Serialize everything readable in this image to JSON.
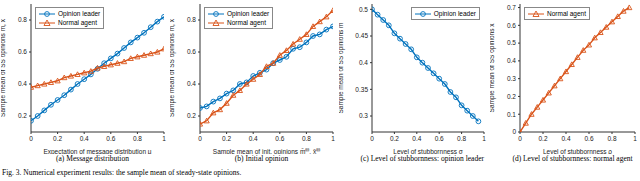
{
  "caption": "Fig. 3. Numerical experiment results: the sample mean of steady-state opinions.",
  "chart_data": [
    {
      "type": "scatter",
      "title": "(a) Message distribution",
      "x_label": "Expectation of message distribution μ",
      "y_label": "Sample mean of SS opinions m̄, x̄",
      "xlim": [
        0,
        1
      ],
      "ylim": [
        0.1,
        0.9
      ],
      "xticks": [
        0,
        0.2,
        0.4,
        0.6,
        0.8,
        1
      ],
      "yticks": [
        0.2,
        0.4,
        0.6,
        0.8
      ],
      "grid": false,
      "legend": "upper left",
      "series": [
        {
          "name": "Opinion leader",
          "color": "#0072bd",
          "marker": "circle",
          "line_style": "solid",
          "x": [
            0,
            0.05,
            0.1,
            0.15,
            0.2,
            0.25,
            0.3,
            0.35,
            0.4,
            0.45,
            0.5,
            0.55,
            0.6,
            0.65,
            0.7,
            0.75,
            0.8,
            0.85,
            0.9,
            0.95,
            1
          ],
          "values": [
            0.17,
            0.2,
            0.235,
            0.27,
            0.3,
            0.33,
            0.365,
            0.4,
            0.43,
            0.46,
            0.495,
            0.53,
            0.56,
            0.59,
            0.625,
            0.66,
            0.69,
            0.72,
            0.755,
            0.79,
            0.82
          ]
        },
        {
          "name": "Normal agent",
          "color": "#d95319",
          "marker": "triangle",
          "line_style": "solid",
          "x": [
            0,
            0.05,
            0.1,
            0.15,
            0.2,
            0.25,
            0.3,
            0.35,
            0.4,
            0.45,
            0.5,
            0.55,
            0.6,
            0.65,
            0.7,
            0.75,
            0.8,
            0.85,
            0.9,
            0.95,
            1
          ],
          "values": [
            0.38,
            0.39,
            0.4,
            0.41,
            0.42,
            0.44,
            0.45,
            0.46,
            0.47,
            0.48,
            0.5,
            0.51,
            0.52,
            0.53,
            0.54,
            0.56,
            0.57,
            0.58,
            0.59,
            0.6,
            0.62
          ]
        }
      ]
    },
    {
      "type": "scatter",
      "title": "(b) Initial opinion",
      "x_label": "Sample mean of init. opinions m̄⁽⁰⁾, x̄⁽⁰⁾",
      "y_label": "Sample mean of SS opinions m̄, x̄",
      "xlim": [
        0,
        1
      ],
      "ylim": [
        0.1,
        0.9
      ],
      "xticks": [
        0,
        0.2,
        0.4,
        0.6,
        0.8,
        1
      ],
      "yticks": [
        0.2,
        0.4,
        0.6,
        0.8
      ],
      "grid": false,
      "legend": "upper left",
      "series": [
        {
          "name": "Opinion leader",
          "color": "#0072bd",
          "marker": "circle",
          "line_style": "solid",
          "x": [
            0,
            0.05,
            0.1,
            0.15,
            0.2,
            0.25,
            0.3,
            0.35,
            0.4,
            0.45,
            0.5,
            0.55,
            0.6,
            0.65,
            0.7,
            0.75,
            0.8,
            0.85,
            0.9,
            0.95,
            1
          ],
          "values": [
            0.25,
            0.26,
            0.29,
            0.31,
            0.34,
            0.36,
            0.4,
            0.41,
            0.45,
            0.47,
            0.49,
            0.53,
            0.55,
            0.57,
            0.62,
            0.63,
            0.66,
            0.7,
            0.71,
            0.74,
            0.76
          ]
        },
        {
          "name": "Normal agent",
          "color": "#d95319",
          "marker": "triangle",
          "line_style": "solid",
          "x": [
            0,
            0.05,
            0.1,
            0.15,
            0.2,
            0.25,
            0.3,
            0.35,
            0.4,
            0.45,
            0.5,
            0.55,
            0.6,
            0.65,
            0.7,
            0.75,
            0.8,
            0.85,
            0.9,
            0.95,
            1
          ],
          "values": [
            0.15,
            0.17,
            0.22,
            0.24,
            0.28,
            0.33,
            0.36,
            0.4,
            0.43,
            0.46,
            0.51,
            0.53,
            0.58,
            0.61,
            0.65,
            0.68,
            0.71,
            0.76,
            0.79,
            0.82,
            0.86
          ]
        }
      ]
    },
    {
      "type": "line",
      "title": "(c) Level of stubbornness: opinion leader",
      "x_label": "Level of stubbornness σ",
      "y_label": "Sample mean of SS opinions m̄",
      "xlim": [
        0,
        1
      ],
      "ylim": [
        0.27,
        0.51
      ],
      "xticks": [
        0,
        0.2,
        0.4,
        0.6,
        0.8,
        1
      ],
      "yticks": [
        0.3,
        0.35,
        0.4,
        0.45,
        0.5
      ],
      "grid": false,
      "legend": "upper right",
      "series": [
        {
          "name": "Opinion leader",
          "color": "#0072bd",
          "marker": "circle",
          "line_style": "solid",
          "x": [
            0,
            0.05,
            0.1,
            0.15,
            0.2,
            0.25,
            0.3,
            0.35,
            0.4,
            0.45,
            0.5,
            0.55,
            0.6,
            0.65,
            0.7,
            0.75,
            0.8,
            0.85,
            0.9,
            0.95
          ],
          "values": [
            0.5,
            0.49,
            0.48,
            0.47,
            0.455,
            0.445,
            0.435,
            0.425,
            0.41,
            0.4,
            0.39,
            0.38,
            0.37,
            0.36,
            0.345,
            0.335,
            0.32,
            0.31,
            0.3,
            0.29
          ]
        }
      ]
    },
    {
      "type": "line",
      "title": "(d) Level of stubbornness: normal agent",
      "x_label": "Level of stubbornness ρ",
      "y_label": "Sample mean of SS opinions x̄",
      "xlim": [
        0,
        1
      ],
      "ylim": [
        0,
        0.72
      ],
      "xticks": [
        0,
        0.2,
        0.4,
        0.6,
        0.8,
        1
      ],
      "yticks": [
        0,
        0.1,
        0.2,
        0.3,
        0.4,
        0.5,
        0.6,
        0.7
      ],
      "grid": false,
      "legend": "upper left",
      "series": [
        {
          "name": "Normal agent",
          "color": "#d95319",
          "marker": "triangle",
          "line_style": "solid",
          "x": [
            0,
            0.05,
            0.1,
            0.15,
            0.2,
            0.25,
            0.3,
            0.35,
            0.4,
            0.45,
            0.5,
            0.55,
            0.6,
            0.65,
            0.7,
            0.75,
            0.8,
            0.85,
            0.9,
            0.95
          ],
          "values": [
            0,
            0.05,
            0.1,
            0.14,
            0.18,
            0.22,
            0.26,
            0.3,
            0.34,
            0.38,
            0.42,
            0.46,
            0.49,
            0.53,
            0.56,
            0.59,
            0.62,
            0.65,
            0.68,
            0.7
          ]
        }
      ]
    }
  ]
}
